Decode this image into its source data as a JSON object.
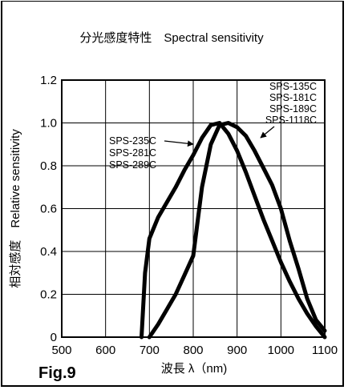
{
  "chart_data": {
    "type": "line",
    "title": "分光感度特性　Spectral sensitivity",
    "xlabel": "波長 λ（nm)",
    "ylabel": "相対感度　Relative sensitivity",
    "xlim": [
      500,
      1100
    ],
    "ylim": [
      0,
      1.2
    ],
    "x_ticks": [
      "500",
      "600",
      "700",
      "800",
      "900",
      "1000",
      "1100"
    ],
    "y_ticks": [
      "0",
      "0.2",
      "0.4",
      "0.6",
      "0.8",
      "1.0",
      "1.2"
    ],
    "grid": true,
    "series": [
      {
        "labels": [
          "SPS-235C",
          "SPS-281C",
          "SPS-289C"
        ],
        "x": [
          682,
          690,
          700,
          720,
          740,
          760,
          780,
          800,
          820,
          840,
          860,
          880,
          900,
          920,
          940,
          960,
          980,
          1000,
          1020,
          1040,
          1060,
          1080,
          1100
        ],
        "y": [
          0.0,
          0.3,
          0.46,
          0.56,
          0.63,
          0.7,
          0.78,
          0.85,
          0.93,
          0.99,
          1.0,
          0.95,
          0.87,
          0.77,
          0.66,
          0.55,
          0.45,
          0.35,
          0.26,
          0.18,
          0.11,
          0.05,
          0.0
        ]
      },
      {
        "labels": [
          "SPS-135C",
          "SPS-181C",
          "SPS-189C",
          "SPS-1118C"
        ],
        "x": [
          700,
          720,
          740,
          760,
          780,
          800,
          820,
          840,
          860,
          880,
          900,
          920,
          940,
          960,
          980,
          1000,
          1020,
          1040,
          1060,
          1080,
          1100
        ],
        "y": [
          0.0,
          0.06,
          0.13,
          0.2,
          0.29,
          0.38,
          0.7,
          0.9,
          0.99,
          1.0,
          0.98,
          0.94,
          0.87,
          0.79,
          0.71,
          0.6,
          0.45,
          0.32,
          0.18,
          0.08,
          0.03
        ]
      }
    ]
  },
  "figure_label": "Fig.9"
}
